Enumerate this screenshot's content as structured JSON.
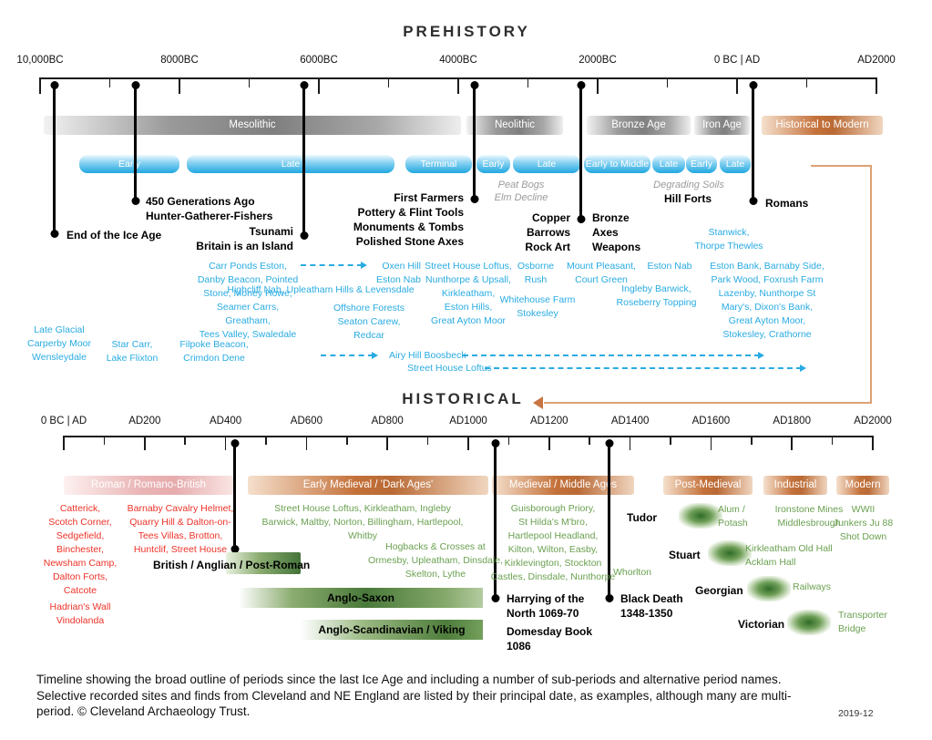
{
  "prehistory": {
    "title": "PREHISTORY",
    "axis_labels": [
      "10,000BC",
      "8000BC",
      "6000BC",
      "4000BC",
      "2000BC",
      "0 BC | AD",
      "AD2000"
    ],
    "periods": {
      "mesolithic": "Mesolithic",
      "neolithic": "Neolithic",
      "bronze_age": "Bronze Age",
      "iron_age": "Iron Age",
      "historical_to_modern": "Historical to Modern"
    },
    "subperiods": [
      "Early",
      "Late",
      "Terminal",
      "Early",
      "Late",
      "Early to Middle",
      "Late",
      "Early",
      "Late"
    ],
    "events": {
      "end_ice_age": "End of the Ice Age",
      "generations": "450 Generations Ago\nHunter-Gatherer-Fishers",
      "tsunami": "Tsunami\nBritain is an Island",
      "first_farmers": "First Farmers\nPottery & Flint Tools\nMonuments & Tombs\nPolished Stone Axes",
      "copper": "Copper\nBarrows\nRock Art",
      "bronze": "Bronze\nAxes\nWeapons",
      "hill_forts": "Hill Forts",
      "romans": "Romans"
    },
    "notes": {
      "peat_bogs": "Peat Bogs\nElm Decline",
      "degrading_soils": "Degrading Soils"
    },
    "sites": {
      "carr_ponds": "Carr Ponds Eston,\nDanby Beacon, Pointed\nStone, Money Howe,\nSeamer Carrs, Greatham,\nTees Valley, Swaledale",
      "late_glacial": "Late Glacial\nCarperby Moor\nWensleydale",
      "star_carr": "Star Carr,\nLake Flixton",
      "filpoke": "Filpoke Beacon,\nCrimdon Dene",
      "highcliff": "Highcliff Nab, Upleatham Hills & Levensdale",
      "offshore": "Offshore Forests\nSeaton Carew,\nRedcar",
      "oxen_hill": "Oxen Hill\nEston Nab",
      "street_house_loftus": "Street House Loftus,\nNunthorpe & Upsall,\nKirkleatham,\nEston Hills,\nGreat Ayton Moor",
      "osborne": "Osborne\nRush",
      "whitehouse_farm": "Whitehouse Farm\nStokesley",
      "mount_pleasant": "Mount Pleasant,\nCourt Green",
      "ingleby_barwick": "Ingleby Barwick,\nRoseberry Topping",
      "eston_nab": "Eston Nab",
      "stanwick": "Stanwick,\nThorpe Thewles",
      "eston_bank": "Eston Bank, Barnaby Side,\nPark Wood, Foxrush Farm\nLazenby, Nunthorpe St\nMary's, Dixon's Bank,\nGreat Ayton Moor,\nStokesley, Crathorne",
      "airy_hill": "Airy Hill Boosbeck",
      "street_house_loftus_2": "Street House Loftus"
    }
  },
  "historical": {
    "title": "HISTORICAL",
    "axis_labels": [
      "0 BC | AD",
      "AD200",
      "AD400",
      "AD600",
      "AD800",
      "AD1000",
      "AD1200",
      "AD1400",
      "AD1600",
      "AD1800",
      "AD2000"
    ],
    "periods": {
      "roman": "Roman / Romano-British",
      "early_medieval": "Early Medieval / 'Dark Ages'",
      "medieval": "Medieval / Middle Ages",
      "post_medieval": "Post-Medieval",
      "industrial": "Industrial",
      "modern": "Modern"
    },
    "eras": {
      "british": "British / Anglian / Post-Roman",
      "anglo_saxon": "Anglo-Saxon",
      "viking": "Anglo-Scandinavian / Viking",
      "tudor": "Tudor",
      "stuart": "Stuart",
      "georgian": "Georgian",
      "victorian": "Victorian"
    },
    "events": {
      "harrying": "Harrying of the\nNorth 1069-70",
      "domesday": "Domesday Book\n1086",
      "black_death": "Black Death\n1348-1350"
    },
    "sites_roman": {
      "catterick": "Catterick,\nScotch Corner,\nSedgefield,\nBinchester,\nNewsham Camp,\nDalton Forts,\nCatcote",
      "barnaby": "Barnaby Cavalry Helmet,\nQuarry Hill & Dalton-on-\nTees Villas, Brotton,\nHuntclif, Street House",
      "hadrians_wall": "Hadrian's Wall\nVindolanda"
    },
    "sites_medieval": {
      "street_house": "Street House Loftus, Kirkleatham, Ingleby\nBarwick, Maltby, Norton, Billingham, Hartlepool,\nWhitby",
      "hogbacks": "Hogbacks & Crosses at\nOrmesby, Upleatham, Dinsdale,\nSkelton, Lythe",
      "guisborough": "Guisborough Priory,\nSt Hilda's M'bro,\nHartlepool Headland,\nKilton, Wilton, Easby,\nKirklevington, Stockton\nCastles, Dinsdale, Nunthorpe",
      "whorlton": "Whorlton",
      "alum": "Alum /\nPotash",
      "ironstone": "Ironstone Mines\nMiddlesbrough",
      "wwii": "WWII\nJunkers Ju 88\nShot Down",
      "kirkleatham_hall": "Kirkleatham Old Hall\nAcklam Hall",
      "railways": "Railways",
      "transporter": "Transporter\nBridge"
    }
  },
  "caption": {
    "text": "Timeline showing the broad outline of periods since the last Ice Age and including a number of sub-periods and alternative period names.\nSelective recorded sites and finds from Cleveland and NE England are listed by their principal date, as examples, although many are multi-\nperiod. © Cleveland Archaeology Trust.",
    "version": "2019-12"
  },
  "colors": {
    "blue": "#29abe2",
    "red": "#ed3228",
    "green": "#6aa050",
    "gray_bar": "#7f7f7f",
    "tan_bar": "#c4713a",
    "pink_bar": "#e8aeb0",
    "era_green": "#49793a",
    "orange_connector": "#dca175",
    "black": "#000000"
  }
}
